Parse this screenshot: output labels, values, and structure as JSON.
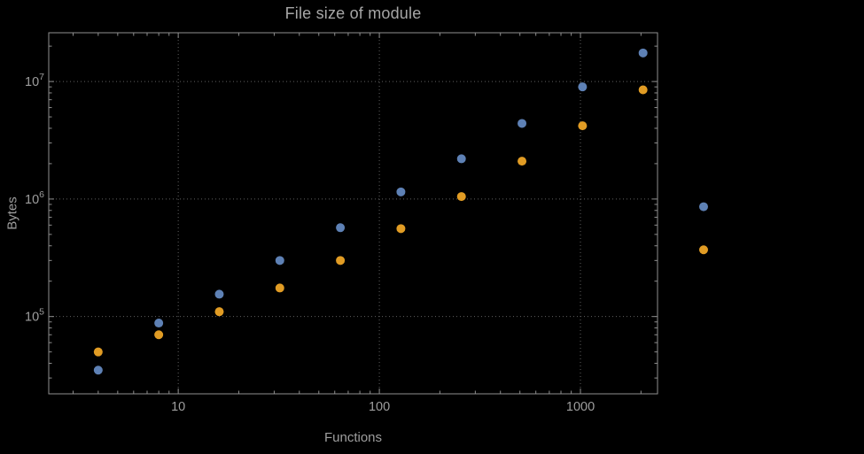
{
  "colors": {
    "background": "#000000",
    "frame": "#8f8f8f",
    "grid": "#606060",
    "text": "#9e9e9e",
    "title": "#a6a6a6",
    "series_blue": "#5e81b5",
    "series_orange": "#e19c24"
  },
  "chart_data": {
    "type": "scatter",
    "title": "File size of module",
    "xlabel": "Functions",
    "ylabel": "Bytes",
    "x_scale": "log",
    "y_scale": "log",
    "grid": "dotted-at-major-ticks",
    "legend": "none",
    "xlim": [
      2.27,
      2417
    ],
    "ylim": [
      22000,
      26000000
    ],
    "x_ticks": [
      {
        "value": 10,
        "label": "10"
      },
      {
        "value": 100,
        "label": "100"
      },
      {
        "value": 1000,
        "label": "1000"
      }
    ],
    "y_ticks": [
      {
        "value": 100000,
        "base": "10",
        "exponent": "5"
      },
      {
        "value": 1000000,
        "base": "10",
        "exponent": "6"
      },
      {
        "value": 10000000,
        "base": "10",
        "exponent": "7"
      }
    ],
    "x": [
      4,
      8,
      16,
      32,
      64,
      128,
      256,
      512,
      1024,
      2048,
      4096
    ],
    "series": [
      {
        "name": "blue",
        "color": "#5e81b5",
        "values": [
          35000,
          88000,
          155000,
          300000,
          570000,
          1150000,
          2200000,
          4400000,
          9000000,
          17500000,
          860000
        ]
      },
      {
        "name": "orange",
        "color": "#e19c24",
        "values": [
          50000,
          70000,
          110000,
          175000,
          300000,
          560000,
          1050000,
          2100000,
          4200000,
          8500000,
          370000
        ]
      }
    ]
  }
}
